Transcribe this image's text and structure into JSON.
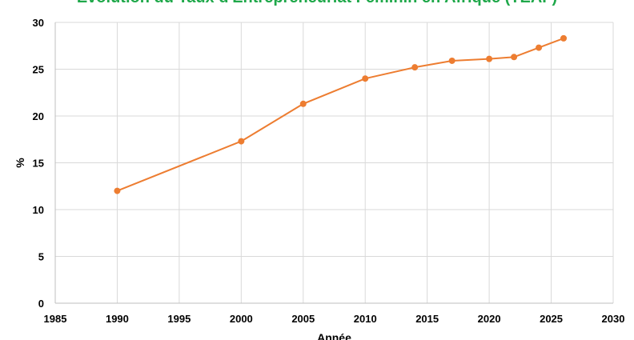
{
  "chart_data": {
    "type": "line",
    "title": "Évolution du Taux d'Entrepreneuriat Féminin en Afrique (TEAF)",
    "xlabel": "Année",
    "ylabel": "%",
    "xlim": [
      1985,
      2030
    ],
    "ylim": [
      0,
      30
    ],
    "x_ticks": [
      "1985",
      "1990",
      "1995",
      "2000",
      "2005",
      "2010",
      "2015",
      "2020",
      "2025",
      "2030"
    ],
    "y_ticks": [
      "0",
      "5",
      "10",
      "15",
      "20",
      "25",
      "30"
    ],
    "grid": true,
    "legend": "none",
    "series": [
      {
        "color": "#ed7d31",
        "x": [
          1990,
          2000,
          2005,
          2010,
          2014,
          2017,
          2020,
          2022,
          2024,
          2026
        ],
        "y": [
          12.0,
          17.3,
          21.3,
          24.0,
          25.2,
          25.9,
          26.1,
          26.3,
          27.3,
          28.3
        ]
      }
    ]
  }
}
